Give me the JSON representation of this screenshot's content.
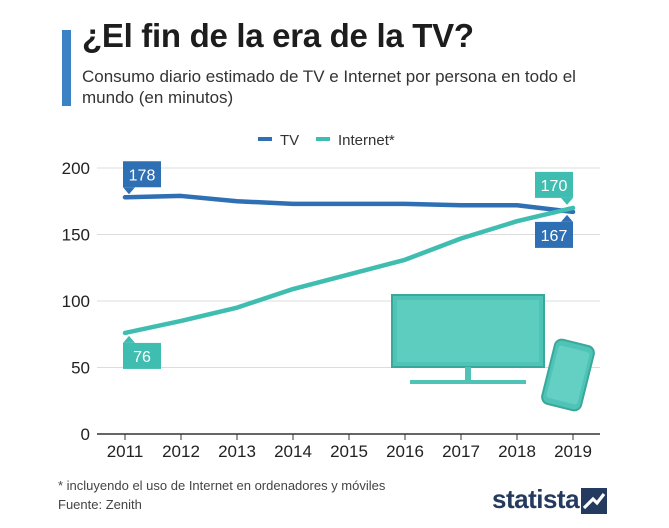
{
  "header": {
    "title": "¿El fin de la era de la TV?",
    "subtitle": "Consumo diario estimado de TV e Internet por persona en todo el mundo (en minutos)"
  },
  "chart_data": {
    "type": "line",
    "title": "¿El fin de la era de la TV?",
    "subtitle": "Consumo diario estimado de TV e Internet por persona en todo el mundo (en minutos)",
    "x": [
      "2011",
      "2012",
      "2013",
      "2014",
      "2015",
      "2016",
      "2017",
      "2018",
      "2019"
    ],
    "series": [
      {
        "name": "TV",
        "color": "#2f6fb3",
        "values": [
          178,
          179,
          175,
          173,
          173,
          173,
          172,
          172,
          167
        ]
      },
      {
        "name": "Internet*",
        "color": "#3fbdb0",
        "values": [
          76,
          85,
          95,
          109,
          120,
          131,
          147,
          160,
          170
        ]
      }
    ],
    "annotations": [
      {
        "series": "TV",
        "x": "2011",
        "label": "178"
      },
      {
        "series": "Internet*",
        "x": "2011",
        "label": "76"
      },
      {
        "series": "Internet*",
        "x": "2019",
        "label": "170"
      },
      {
        "series": "TV",
        "x": "2019",
        "label": "167"
      }
    ],
    "yticks": [
      0,
      50,
      100,
      150,
      200
    ],
    "ylim": [
      0,
      200
    ],
    "xlabel": "",
    "ylabel": "",
    "grid": true,
    "legend": "top-center"
  },
  "footer": {
    "footnote": "* incluyendo el uso de Internet en ordenadores y móviles",
    "source": "Fuente: Zenith",
    "brand": "statista"
  },
  "icons": [
    "tv-icon",
    "smartphone-icon",
    "statista-logo-icon"
  ]
}
